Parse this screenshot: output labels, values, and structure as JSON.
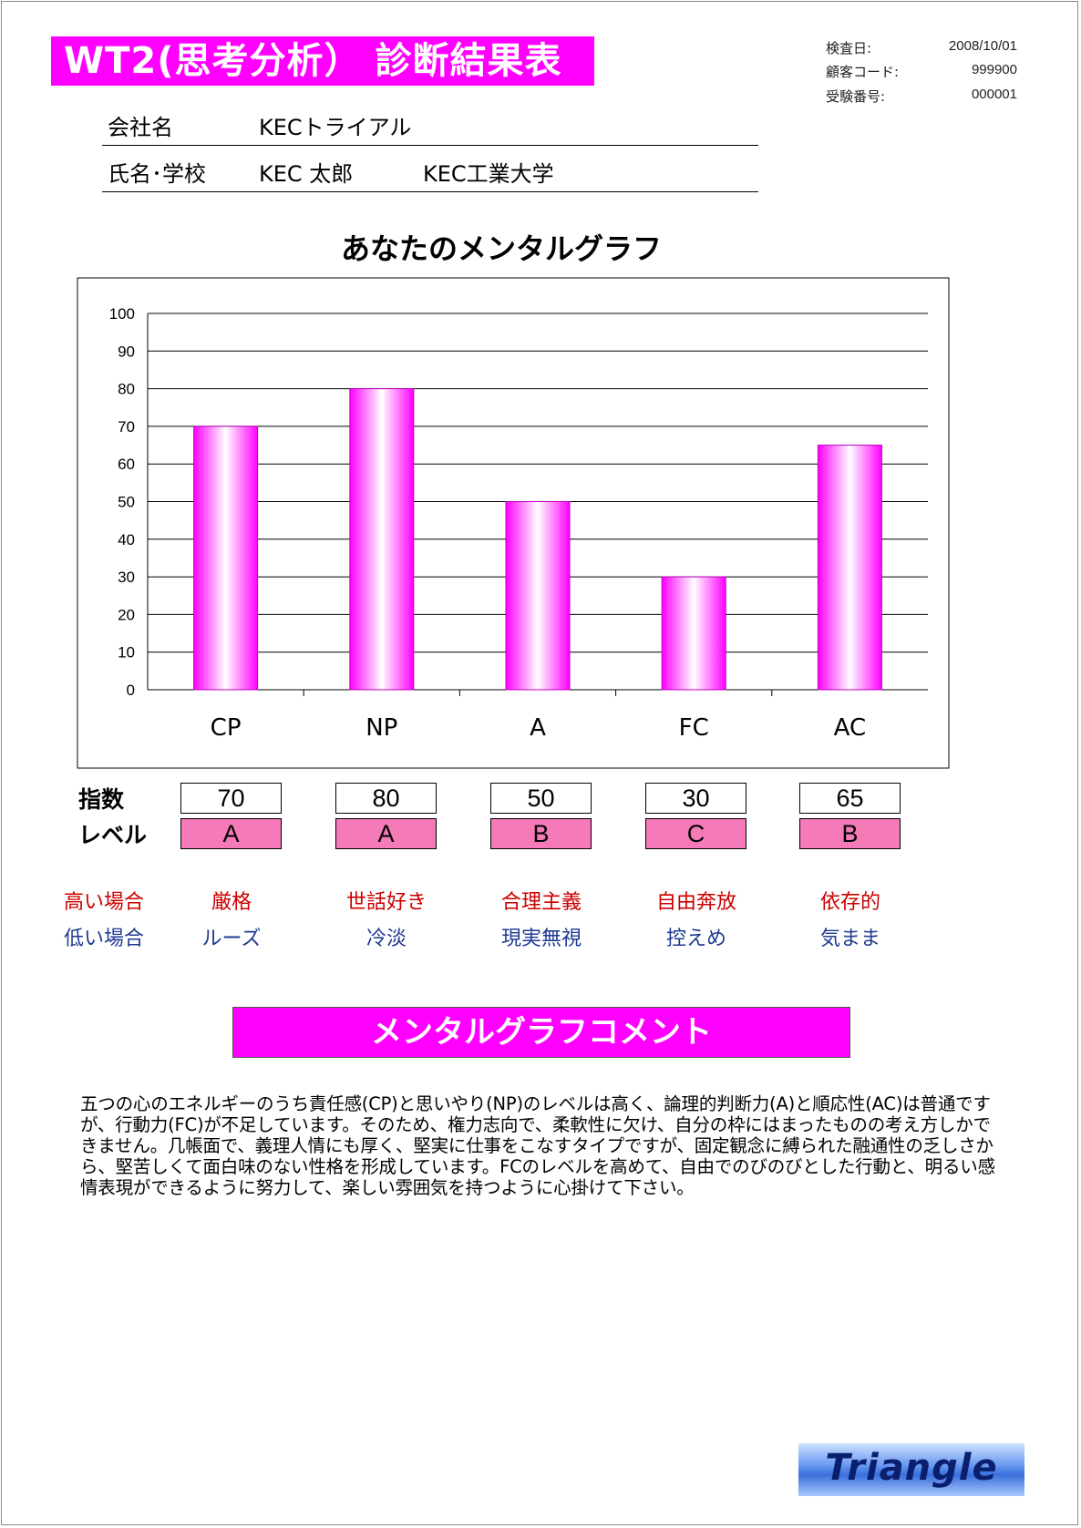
{
  "header": {
    "title": "WT2(思考分析） 診断結果表",
    "meta": [
      {
        "label": "検査日:",
        "value": "2008/10/01"
      },
      {
        "label": "顧客コード:",
        "value": "999900"
      },
      {
        "label": "受験番号:",
        "value": "000001"
      }
    ]
  },
  "info": {
    "company_label": "会社名",
    "company_value": "KECトライアル",
    "name_label": "氏名･学校",
    "name_value": "KEC 太郎",
    "school_value": "KEC工業大学"
  },
  "chart_data": {
    "type": "bar",
    "title": "あなたのメンタルグラフ",
    "categories": [
      "CP",
      "NP",
      "A",
      "FC",
      "AC"
    ],
    "values": [
      70,
      80,
      50,
      30,
      65
    ],
    "ylim": [
      0,
      100
    ],
    "yticks": [
      0,
      10,
      20,
      30,
      40,
      50,
      60,
      70,
      80,
      90,
      100
    ],
    "grid": true,
    "colors": {
      "bar_edge": "#c000c0",
      "bar_center": "#ffffff",
      "bar_side": "#ff00ff",
      "grid": "#000000"
    }
  },
  "table": {
    "score_label": "指数",
    "level_label": "レベル",
    "scores": [
      "70",
      "80",
      "50",
      "30",
      "65"
    ],
    "levels": [
      "A",
      "A",
      "B",
      "C",
      "B"
    ],
    "high_label": "高い場合",
    "low_label": "低い場合",
    "high_traits": [
      "厳格",
      "世話好き",
      "合理主義",
      "自由奔放",
      "依存的"
    ],
    "low_traits": [
      "ルーズ",
      "冷淡",
      "現実無視",
      "控えめ",
      "気まま"
    ]
  },
  "comment": {
    "heading": "メンタルグラフコメント",
    "body": "五つの心のエネルギーのうち責任感(CP)と思いやり(NP)のレベルは高く、論理的判断力(A)と順応性(AC)は普通ですが、行動力(FC)が不足しています。そのため、権力志向で、柔軟性に欠け、自分の枠にはまったものの考え方しかできません。几帳面で、義理人情にも厚く、堅実に仕事をこなすタイプですが、固定観念に縛られた融通性の乏しさから、堅苦しくて面白味のない性格を形成しています。FCのレベルを高めて、自由でのびのびとした行動と、明るい感情表現ができるように努力して、楽しい雰囲気を持つように心掛けて下さい。"
  },
  "logo": {
    "text": "Triangle"
  }
}
